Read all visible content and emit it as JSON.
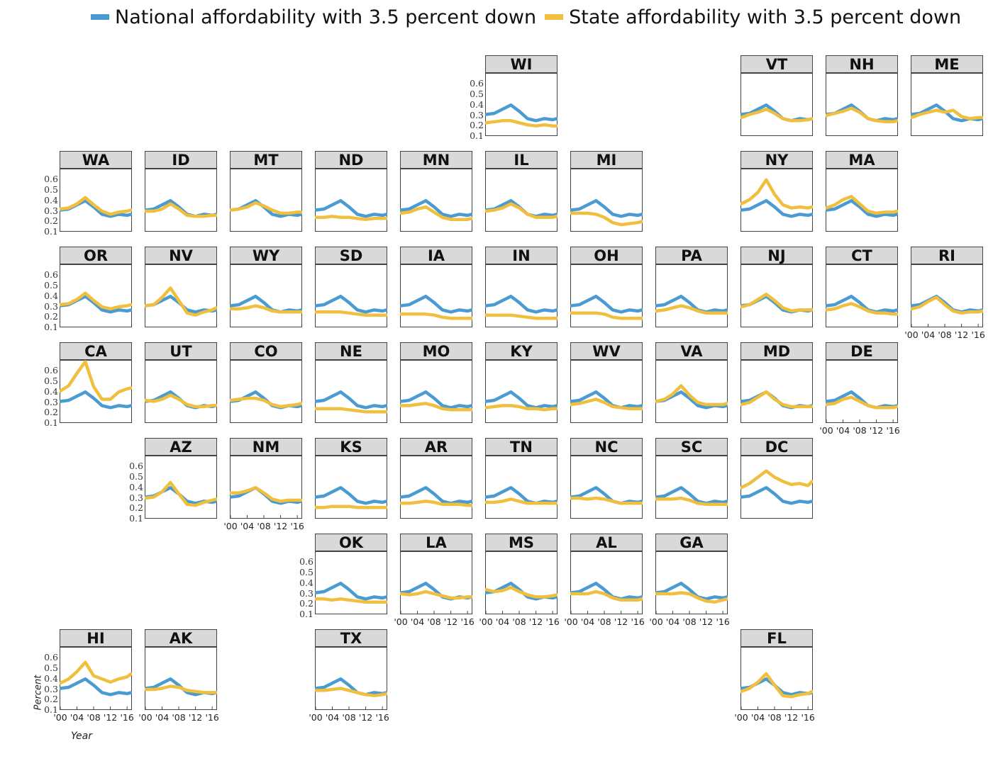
{
  "legend": [
    {
      "label": "National affordability with 3.5 percent down",
      "color": "#4a9bd1"
    },
    {
      "label": "State affordability with 3.5 percent down",
      "color": "#f1bf3e"
    }
  ],
  "axis_titles": {
    "y": "Percent",
    "x": "Year"
  },
  "chart_data": {
    "type": "line",
    "layout": "small multiples arranged as a map of U.S. states",
    "ylim": [
      0.1,
      0.65
    ],
    "y_ticks": [
      "0.6",
      "0.5",
      "0.4",
      "0.3",
      "0.2",
      "0.1"
    ],
    "x_tick_labels": [
      "'00",
      "'04",
      "'08",
      "'12",
      "'16"
    ],
    "x_tick_years": [
      2000,
      2004,
      2008,
      2012,
      2016
    ],
    "xlim": [
      2000,
      2017
    ],
    "x": [
      2000,
      2002,
      2004,
      2006,
      2008,
      2010,
      2012,
      2014,
      2016,
      2017
    ],
    "national": [
      0.28,
      0.29,
      0.33,
      0.37,
      0.31,
      0.24,
      0.22,
      0.24,
      0.23,
      0.24
    ],
    "states": [
      {
        "code": "WI",
        "state": [
          0.2,
          0.21,
          0.22,
          0.22,
          0.2,
          0.18,
          0.17,
          0.18,
          0.17,
          0.17
        ]
      },
      {
        "code": "VT",
        "state": [
          0.25,
          0.28,
          0.3,
          0.33,
          0.29,
          0.24,
          0.22,
          0.22,
          0.23,
          0.24
        ]
      },
      {
        "code": "NH",
        "state": [
          0.27,
          0.29,
          0.31,
          0.34,
          0.3,
          0.24,
          0.22,
          0.21,
          0.21,
          0.22
        ]
      },
      {
        "code": "ME",
        "state": [
          0.25,
          0.28,
          0.3,
          0.32,
          0.3,
          0.32,
          0.26,
          0.24,
          0.25,
          0.25
        ]
      },
      {
        "code": "WA",
        "state": [
          0.29,
          0.3,
          0.34,
          0.4,
          0.33,
          0.27,
          0.24,
          0.26,
          0.27,
          0.28
        ]
      },
      {
        "code": "ID",
        "state": [
          0.27,
          0.27,
          0.29,
          0.34,
          0.29,
          0.23,
          0.22,
          0.22,
          0.23,
          0.23
        ]
      },
      {
        "code": "MT",
        "state": [
          0.28,
          0.29,
          0.31,
          0.35,
          0.32,
          0.28,
          0.25,
          0.25,
          0.26,
          0.26
        ]
      },
      {
        "code": "ND",
        "state": [
          0.21,
          0.21,
          0.22,
          0.21,
          0.21,
          0.2,
          0.19,
          0.2,
          0.2,
          0.2
        ]
      },
      {
        "code": "MN",
        "state": [
          0.25,
          0.26,
          0.29,
          0.31,
          0.26,
          0.21,
          0.19,
          0.19,
          0.19,
          0.2
        ]
      },
      {
        "code": "IL",
        "state": [
          0.27,
          0.28,
          0.3,
          0.34,
          0.3,
          0.24,
          0.21,
          0.21,
          0.21,
          0.22
        ]
      },
      {
        "code": "MI",
        "state": [
          0.25,
          0.25,
          0.25,
          0.24,
          0.21,
          0.16,
          0.14,
          0.15,
          0.16,
          0.17
        ]
      },
      {
        "code": "NY",
        "state": [
          0.34,
          0.38,
          0.45,
          0.57,
          0.43,
          0.33,
          0.3,
          0.31,
          0.3,
          0.31
        ]
      },
      {
        "code": "MA",
        "state": [
          0.3,
          0.33,
          0.38,
          0.41,
          0.34,
          0.27,
          0.25,
          0.26,
          0.26,
          0.27
        ]
      },
      {
        "code": "OR",
        "state": [
          0.29,
          0.3,
          0.34,
          0.4,
          0.33,
          0.27,
          0.25,
          0.27,
          0.28,
          0.29
        ]
      },
      {
        "code": "NV",
        "state": [
          0.28,
          0.29,
          0.36,
          0.45,
          0.33,
          0.21,
          0.19,
          0.22,
          0.24,
          0.26
        ]
      },
      {
        "code": "WY",
        "state": [
          0.25,
          0.25,
          0.26,
          0.28,
          0.26,
          0.23,
          0.22,
          0.22,
          0.22,
          0.22
        ]
      },
      {
        "code": "SD",
        "state": [
          0.22,
          0.22,
          0.22,
          0.22,
          0.21,
          0.2,
          0.19,
          0.19,
          0.19,
          0.19
        ]
      },
      {
        "code": "IA",
        "state": [
          0.2,
          0.2,
          0.2,
          0.2,
          0.19,
          0.17,
          0.16,
          0.16,
          0.16,
          0.16
        ]
      },
      {
        "code": "IN",
        "state": [
          0.19,
          0.19,
          0.19,
          0.19,
          0.18,
          0.17,
          0.16,
          0.16,
          0.16,
          0.16
        ]
      },
      {
        "code": "OH",
        "state": [
          0.21,
          0.21,
          0.21,
          0.21,
          0.2,
          0.17,
          0.16,
          0.16,
          0.16,
          0.16
        ]
      },
      {
        "code": "PA",
        "state": [
          0.23,
          0.24,
          0.26,
          0.28,
          0.26,
          0.23,
          0.21,
          0.21,
          0.21,
          0.21
        ]
      },
      {
        "code": "NJ",
        "state": [
          0.27,
          0.29,
          0.34,
          0.39,
          0.33,
          0.26,
          0.23,
          0.24,
          0.24,
          0.24
        ]
      },
      {
        "code": "CT",
        "state": [
          0.24,
          0.25,
          0.28,
          0.3,
          0.27,
          0.23,
          0.21,
          0.21,
          0.2,
          0.2
        ]
      },
      {
        "code": "RI",
        "state": [
          0.25,
          0.27,
          0.32,
          0.36,
          0.29,
          0.23,
          0.21,
          0.22,
          0.22,
          0.23
        ]
      },
      {
        "code": "CA",
        "state": [
          0.38,
          0.43,
          0.55,
          0.66,
          0.42,
          0.3,
          0.3,
          0.37,
          0.4,
          0.41
        ]
      },
      {
        "code": "UT",
        "state": [
          0.29,
          0.28,
          0.3,
          0.34,
          0.3,
          0.25,
          0.23,
          0.23,
          0.24,
          0.24
        ]
      },
      {
        "code": "CO",
        "state": [
          0.29,
          0.3,
          0.31,
          0.31,
          0.29,
          0.25,
          0.23,
          0.24,
          0.25,
          0.26
        ]
      },
      {
        "code": "NE",
        "state": [
          0.21,
          0.21,
          0.21,
          0.21,
          0.2,
          0.19,
          0.18,
          0.18,
          0.18,
          0.18
        ]
      },
      {
        "code": "MO",
        "state": [
          0.24,
          0.24,
          0.25,
          0.26,
          0.24,
          0.21,
          0.2,
          0.2,
          0.2,
          0.2
        ]
      },
      {
        "code": "KY",
        "state": [
          0.22,
          0.23,
          0.24,
          0.24,
          0.23,
          0.21,
          0.21,
          0.2,
          0.21,
          0.21
        ]
      },
      {
        "code": "WV",
        "state": [
          0.25,
          0.26,
          0.28,
          0.3,
          0.27,
          0.23,
          0.22,
          0.21,
          0.21,
          0.21
        ]
      },
      {
        "code": "VA",
        "state": [
          0.28,
          0.3,
          0.35,
          0.43,
          0.34,
          0.27,
          0.25,
          0.25,
          0.25,
          0.26
        ]
      },
      {
        "code": "MD",
        "state": [
          0.25,
          0.27,
          0.32,
          0.37,
          0.3,
          0.25,
          0.23,
          0.23,
          0.23,
          0.23
        ]
      },
      {
        "code": "DE",
        "state": [
          0.25,
          0.26,
          0.3,
          0.32,
          0.28,
          0.24,
          0.22,
          0.22,
          0.22,
          0.23
        ]
      },
      {
        "code": "AZ",
        "state": [
          0.27,
          0.28,
          0.33,
          0.42,
          0.31,
          0.21,
          0.2,
          0.23,
          0.25,
          0.26
        ]
      },
      {
        "code": "NM",
        "state": [
          0.32,
          0.32,
          0.34,
          0.37,
          0.32,
          0.26,
          0.24,
          0.25,
          0.25,
          0.25
        ]
      },
      {
        "code": "KS",
        "state": [
          0.18,
          0.18,
          0.19,
          0.19,
          0.19,
          0.18,
          0.18,
          0.18,
          0.18,
          0.18
        ]
      },
      {
        "code": "AR",
        "state": [
          0.22,
          0.22,
          0.23,
          0.24,
          0.23,
          0.21,
          0.21,
          0.21,
          0.2,
          0.2
        ]
      },
      {
        "code": "TN",
        "state": [
          0.23,
          0.23,
          0.24,
          0.26,
          0.24,
          0.22,
          0.22,
          0.22,
          0.22,
          0.22
        ]
      },
      {
        "code": "NC",
        "state": [
          0.27,
          0.27,
          0.26,
          0.27,
          0.26,
          0.24,
          0.22,
          0.22,
          0.22,
          0.22
        ]
      },
      {
        "code": "SC",
        "state": [
          0.26,
          0.26,
          0.26,
          0.27,
          0.25,
          0.22,
          0.21,
          0.21,
          0.21,
          0.21
        ]
      },
      {
        "code": "DC",
        "state": [
          0.37,
          0.41,
          0.47,
          0.53,
          0.47,
          0.43,
          0.4,
          0.41,
          0.39,
          0.43
        ]
      },
      {
        "code": "OK",
        "state": [
          0.22,
          0.22,
          0.21,
          0.22,
          0.21,
          0.2,
          0.19,
          0.19,
          0.19,
          0.19
        ]
      },
      {
        "code": "LA",
        "state": [
          0.27,
          0.26,
          0.27,
          0.29,
          0.27,
          0.25,
          0.23,
          0.23,
          0.24,
          0.24
        ]
      },
      {
        "code": "MS",
        "state": [
          0.31,
          0.29,
          0.3,
          0.33,
          0.29,
          0.26,
          0.24,
          0.24,
          0.25,
          0.26
        ]
      },
      {
        "code": "AL",
        "state": [
          0.27,
          0.27,
          0.27,
          0.29,
          0.27,
          0.23,
          0.21,
          0.21,
          0.21,
          0.22
        ]
      },
      {
        "code": "GA",
        "state": [
          0.27,
          0.27,
          0.27,
          0.28,
          0.27,
          0.23,
          0.2,
          0.19,
          0.21,
          0.22
        ]
      },
      {
        "code": "HI",
        "state": [
          0.33,
          0.37,
          0.44,
          0.53,
          0.4,
          0.37,
          0.34,
          0.37,
          0.39,
          0.42
        ]
      },
      {
        "code": "AK",
        "state": [
          0.27,
          0.27,
          0.28,
          0.3,
          0.29,
          0.26,
          0.25,
          0.24,
          0.24,
          0.24
        ]
      },
      {
        "code": "TX",
        "state": [
          0.26,
          0.26,
          0.27,
          0.28,
          0.26,
          0.24,
          0.22,
          0.21,
          0.22,
          0.23
        ]
      },
      {
        "code": "FL",
        "state": [
          0.25,
          0.28,
          0.34,
          0.42,
          0.31,
          0.21,
          0.2,
          0.22,
          0.23,
          0.25
        ]
      }
    ]
  }
}
